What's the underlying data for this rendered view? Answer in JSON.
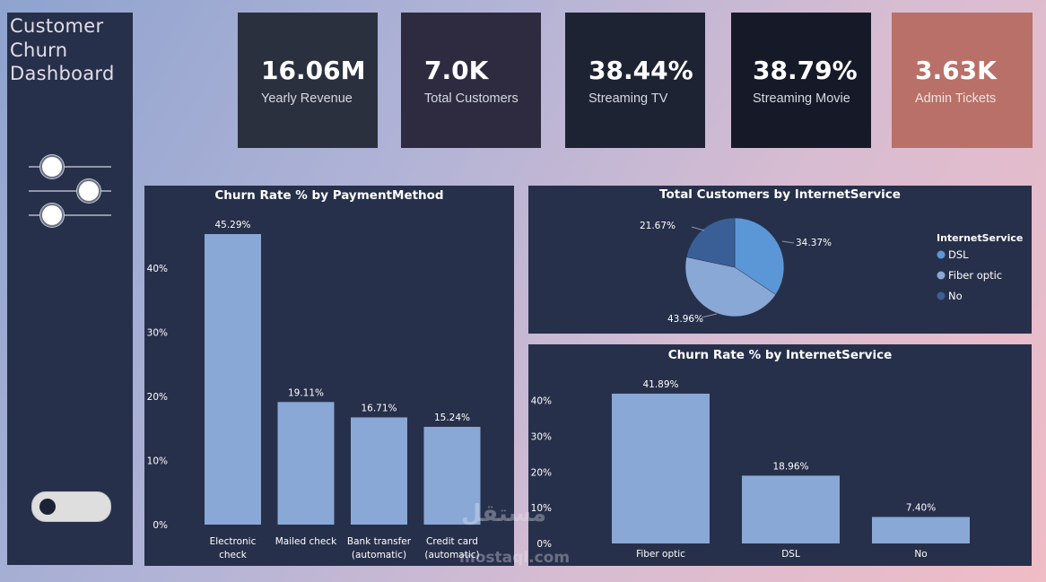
{
  "sidebar": {
    "title_lines": [
      "Customer",
      "Churn",
      "Dashboard"
    ],
    "filter_icon": "sliders-icon",
    "toggle_state": "off"
  },
  "kpis": [
    {
      "value": "16.06M",
      "label": "Yearly Revenue",
      "bg": "#2b303e"
    },
    {
      "value": "7.0K",
      "label": "Total Customers",
      "bg": "#2e2b40"
    },
    {
      "value": "38.44%",
      "label": "Streaming TV",
      "bg": "#1e2334"
    },
    {
      "value": "38.79%",
      "label": "Streaming Movie",
      "bg": "#161a28"
    },
    {
      "value": "3.63K",
      "label": "Admin Tickets",
      "bg": "#b87068"
    }
  ],
  "charts": {
    "payment": {
      "title": "Churn Rate % by PaymentMethod"
    },
    "internet_pie": {
      "title": "Total Customers by InternetService"
    },
    "internet_bar": {
      "title": "Churn Rate % by InternetService"
    }
  },
  "watermark": {
    "arabic": "مستقل",
    "latin": "mostaql.com"
  },
  "chart_data": [
    {
      "type": "bar",
      "title": "Churn Rate % by PaymentMethod",
      "categories": [
        [
          "Electronic",
          "check"
        ],
        [
          "Mailed check"
        ],
        [
          "Bank transfer",
          "(automatic)"
        ],
        [
          "Credit card",
          "(automatic)"
        ]
      ],
      "values": [
        45.29,
        19.11,
        16.71,
        15.24
      ],
      "data_labels": [
        "45.29%",
        "19.11%",
        "16.71%",
        "15.24%"
      ],
      "yticks": [
        "0%",
        "10%",
        "20%",
        "30%",
        "40%"
      ],
      "ylim": [
        0,
        45.29
      ],
      "color": "#8aa8d6"
    },
    {
      "type": "pie",
      "title": "Total Customers by InternetService",
      "legend_title": "InternetService",
      "labels": [
        "DSL",
        "Fiber optic",
        "No"
      ],
      "values": [
        34.37,
        43.96,
        21.67
      ],
      "data_labels": [
        "34.37%",
        "43.96%",
        "21.67%"
      ],
      "colors": [
        "#5b97d6",
        "#8aa8d6",
        "#3a5f97"
      ],
      "legend_position": "right"
    },
    {
      "type": "bar",
      "title": "Churn Rate % by InternetService",
      "categories": [
        "Fiber optic",
        "DSL",
        "No"
      ],
      "values": [
        41.89,
        18.96,
        7.4
      ],
      "data_labels": [
        "41.89%",
        "18.96%",
        "7.40%"
      ],
      "yticks": [
        "0%",
        "10%",
        "20%",
        "30%",
        "40%"
      ],
      "ylim": [
        0,
        41.89
      ],
      "color": "#8aa8d6"
    }
  ]
}
